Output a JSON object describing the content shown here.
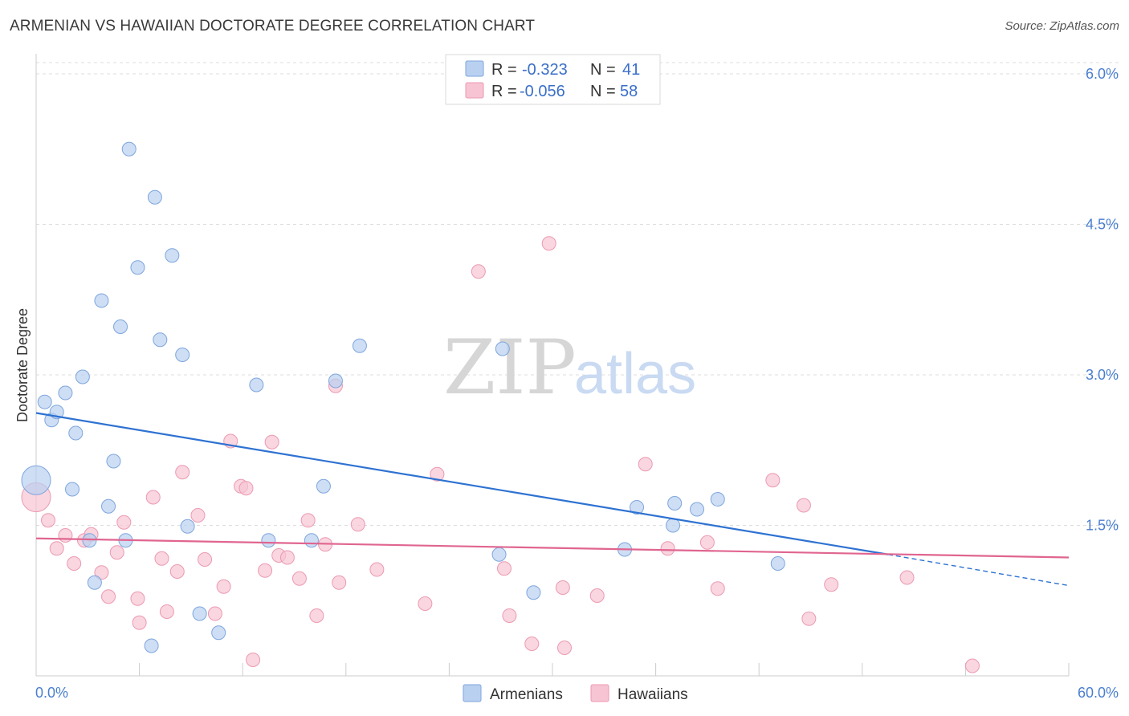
{
  "title": "ARMENIAN VS HAWAIIAN DOCTORATE DEGREE CORRELATION CHART",
  "source": "Source: ZipAtlas.com",
  "watermark": {
    "zip": "ZIP",
    "atlas": "atlas"
  },
  "legend_box": {
    "rows": [
      {
        "r_label": "R =",
        "r_value": "-0.323",
        "n_label": "N =",
        "n_value": "41"
      },
      {
        "r_label": "R =",
        "r_value": "-0.056",
        "n_label": "N =",
        "n_value": "58"
      }
    ]
  },
  "colors": {
    "armenian_fill": "#b9d0f0",
    "armenian_stroke": "#7ea6de",
    "armenian_line": "#2e72d2",
    "hawaiian_fill": "#f7c4d3",
    "hawaiian_stroke": "#ec9ab2",
    "hawaiian_line": "#e06590",
    "grid": "#dddddd",
    "tick_label": "#4a7fd0"
  },
  "chart_data": {
    "type": "scatter",
    "title": "ARMENIAN VS HAWAIIAN DOCTORATE DEGREE CORRELATION CHART",
    "xlabel": "",
    "ylabel": "Doctorate Degree",
    "xlim": [
      0,
      60
    ],
    "ylim": [
      0,
      6.2
    ],
    "x_tick_labels": [
      "0.0%",
      "60.0%"
    ],
    "y_ticks": [
      1.5,
      3.0,
      4.5,
      6.0
    ],
    "y_tick_labels": [
      "1.5%",
      "3.0%",
      "4.5%",
      "6.0%"
    ],
    "legend_placement": "bottom-center",
    "series": [
      {
        "name": "Armenians",
        "R": -0.323,
        "N": 41,
        "trend": {
          "x": [
            0,
            49.5
          ],
          "y": [
            2.62,
            1.21
          ],
          "dashed_to": [
            60,
            0.9
          ]
        },
        "points": [
          {
            "x": 0.0,
            "y": 1.95,
            "big": true
          },
          {
            "x": 0.5,
            "y": 2.73
          },
          {
            "x": 0.9,
            "y": 2.55
          },
          {
            "x": 1.2,
            "y": 2.63
          },
          {
            "x": 1.7,
            "y": 2.82
          },
          {
            "x": 2.1,
            "y": 1.86
          },
          {
            "x": 2.3,
            "y": 2.42
          },
          {
            "x": 2.7,
            "y": 2.98
          },
          {
            "x": 3.1,
            "y": 1.35
          },
          {
            "x": 3.4,
            "y": 0.93
          },
          {
            "x": 3.8,
            "y": 3.74
          },
          {
            "x": 4.2,
            "y": 1.69
          },
          {
            "x": 4.5,
            "y": 2.14
          },
          {
            "x": 4.9,
            "y": 3.48
          },
          {
            "x": 5.2,
            "y": 1.35
          },
          {
            "x": 5.4,
            "y": 5.25
          },
          {
            "x": 5.9,
            "y": 4.07
          },
          {
            "x": 6.7,
            "y": 0.3
          },
          {
            "x": 6.9,
            "y": 4.77
          },
          {
            "x": 7.2,
            "y": 3.35
          },
          {
            "x": 7.9,
            "y": 4.19
          },
          {
            "x": 8.5,
            "y": 3.2
          },
          {
            "x": 8.8,
            "y": 1.49
          },
          {
            "x": 9.5,
            "y": 0.62
          },
          {
            "x": 10.6,
            "y": 0.43
          },
          {
            "x": 12.8,
            "y": 2.9
          },
          {
            "x": 13.5,
            "y": 1.35
          },
          {
            "x": 16.0,
            "y": 1.35
          },
          {
            "x": 16.7,
            "y": 1.89
          },
          {
            "x": 17.4,
            "y": 2.94
          },
          {
            "x": 18.8,
            "y": 3.29
          },
          {
            "x": 26.9,
            "y": 1.21
          },
          {
            "x": 27.1,
            "y": 3.26
          },
          {
            "x": 28.9,
            "y": 0.83
          },
          {
            "x": 34.2,
            "y": 1.26
          },
          {
            "x": 34.9,
            "y": 1.68
          },
          {
            "x": 37.0,
            "y": 1.5
          },
          {
            "x": 37.1,
            "y": 1.72
          },
          {
            "x": 38.4,
            "y": 1.66
          },
          {
            "x": 39.6,
            "y": 1.76
          },
          {
            "x": 43.1,
            "y": 1.12
          }
        ]
      },
      {
        "name": "Hawaiians",
        "R": -0.056,
        "N": 58,
        "trend": {
          "x": [
            0,
            60
          ],
          "y": [
            1.37,
            1.18
          ]
        },
        "points": [
          {
            "x": 0.0,
            "y": 1.78,
            "big": true
          },
          {
            "x": 0.7,
            "y": 1.55
          },
          {
            "x": 1.2,
            "y": 1.27
          },
          {
            "x": 1.7,
            "y": 1.4
          },
          {
            "x": 2.2,
            "y": 1.12
          },
          {
            "x": 2.8,
            "y": 1.35
          },
          {
            "x": 3.2,
            "y": 1.41
          },
          {
            "x": 3.8,
            "y": 1.03
          },
          {
            "x": 4.2,
            "y": 0.79
          },
          {
            "x": 4.7,
            "y": 1.23
          },
          {
            "x": 5.1,
            "y": 1.53
          },
          {
            "x": 5.9,
            "y": 0.77
          },
          {
            "x": 6.0,
            "y": 0.53
          },
          {
            "x": 6.8,
            "y": 1.78
          },
          {
            "x": 7.3,
            "y": 1.17
          },
          {
            "x": 7.6,
            "y": 0.64
          },
          {
            "x": 8.2,
            "y": 1.04
          },
          {
            "x": 8.5,
            "y": 2.03
          },
          {
            "x": 9.4,
            "y": 1.6
          },
          {
            "x": 9.8,
            "y": 1.16
          },
          {
            "x": 10.4,
            "y": 0.62
          },
          {
            "x": 10.9,
            "y": 0.89
          },
          {
            "x": 11.3,
            "y": 2.34
          },
          {
            "x": 11.9,
            "y": 1.89
          },
          {
            "x": 12.2,
            "y": 1.87
          },
          {
            "x": 12.6,
            "y": 0.16
          },
          {
            "x": 13.3,
            "y": 1.05
          },
          {
            "x": 13.7,
            "y": 2.33
          },
          {
            "x": 14.1,
            "y": 1.2
          },
          {
            "x": 14.6,
            "y": 1.18
          },
          {
            "x": 15.3,
            "y": 0.97
          },
          {
            "x": 15.8,
            "y": 1.55
          },
          {
            "x": 16.3,
            "y": 0.6
          },
          {
            "x": 16.8,
            "y": 1.31
          },
          {
            "x": 17.4,
            "y": 2.89
          },
          {
            "x": 17.6,
            "y": 0.93
          },
          {
            "x": 18.7,
            "y": 1.51
          },
          {
            "x": 19.8,
            "y": 1.06
          },
          {
            "x": 22.6,
            "y": 0.72
          },
          {
            "x": 23.3,
            "y": 2.01
          },
          {
            "x": 25.7,
            "y": 4.03
          },
          {
            "x": 27.2,
            "y": 1.07
          },
          {
            "x": 27.5,
            "y": 0.6
          },
          {
            "x": 28.8,
            "y": 0.32
          },
          {
            "x": 29.8,
            "y": 4.31
          },
          {
            "x": 30.7,
            "y": 0.28
          },
          {
            "x": 30.6,
            "y": 0.88
          },
          {
            "x": 32.6,
            "y": 0.8
          },
          {
            "x": 35.4,
            "y": 2.11
          },
          {
            "x": 36.7,
            "y": 1.27
          },
          {
            "x": 39.0,
            "y": 1.33
          },
          {
            "x": 39.6,
            "y": 0.87
          },
          {
            "x": 42.8,
            "y": 1.95
          },
          {
            "x": 44.6,
            "y": 1.7
          },
          {
            "x": 44.9,
            "y": 0.57
          },
          {
            "x": 46.2,
            "y": 0.91
          },
          {
            "x": 50.6,
            "y": 0.98
          },
          {
            "x": 54.4,
            "y": 0.1
          }
        ]
      }
    ]
  }
}
